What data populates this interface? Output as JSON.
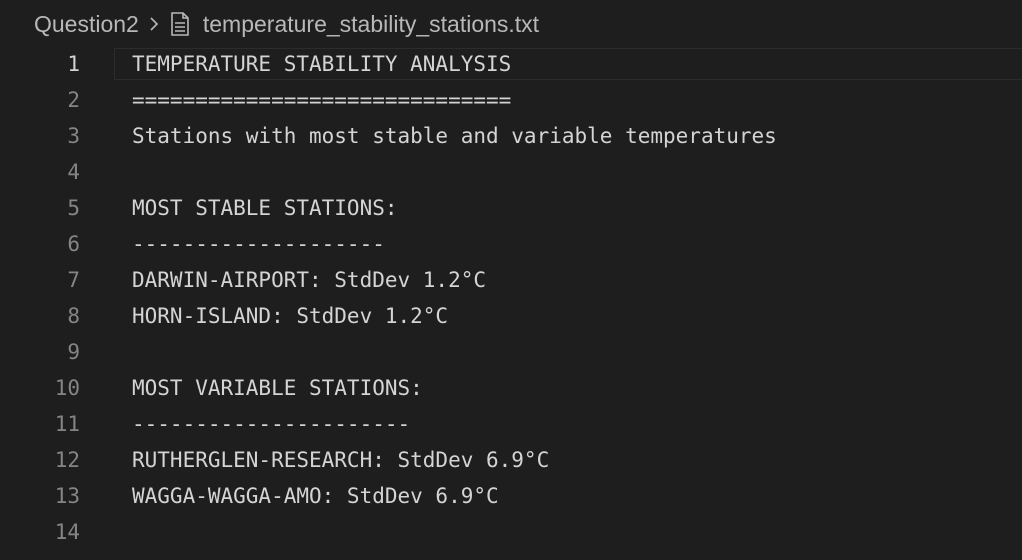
{
  "breadcrumb": {
    "folder": "Question2",
    "separator_icon": "chevron-right-icon",
    "file_icon": "file-text-icon",
    "file": "temperature_stability_stations.txt"
  },
  "editor": {
    "current_line": 1,
    "lines": [
      {
        "number": "1",
        "text": "TEMPERATURE STABILITY ANALYSIS"
      },
      {
        "number": "2",
        "text": "=============================="
      },
      {
        "number": "3",
        "text": "Stations with most stable and variable temperatures"
      },
      {
        "number": "4",
        "text": ""
      },
      {
        "number": "5",
        "text": "MOST STABLE STATIONS:"
      },
      {
        "number": "6",
        "text": "--------------------"
      },
      {
        "number": "7",
        "text": "DARWIN-AIRPORT: StdDev 1.2°C"
      },
      {
        "number": "8",
        "text": "HORN-ISLAND: StdDev 1.2°C"
      },
      {
        "number": "9",
        "text": ""
      },
      {
        "number": "10",
        "text": "MOST VARIABLE STATIONS:"
      },
      {
        "number": "11",
        "text": "----------------------"
      },
      {
        "number": "12",
        "text": "RUTHERGLEN-RESEARCH: StdDev 6.9°C"
      },
      {
        "number": "13",
        "text": "WAGGA-WAGGA-AMO: StdDev 6.9°C"
      },
      {
        "number": "14",
        "text": ""
      }
    ]
  }
}
